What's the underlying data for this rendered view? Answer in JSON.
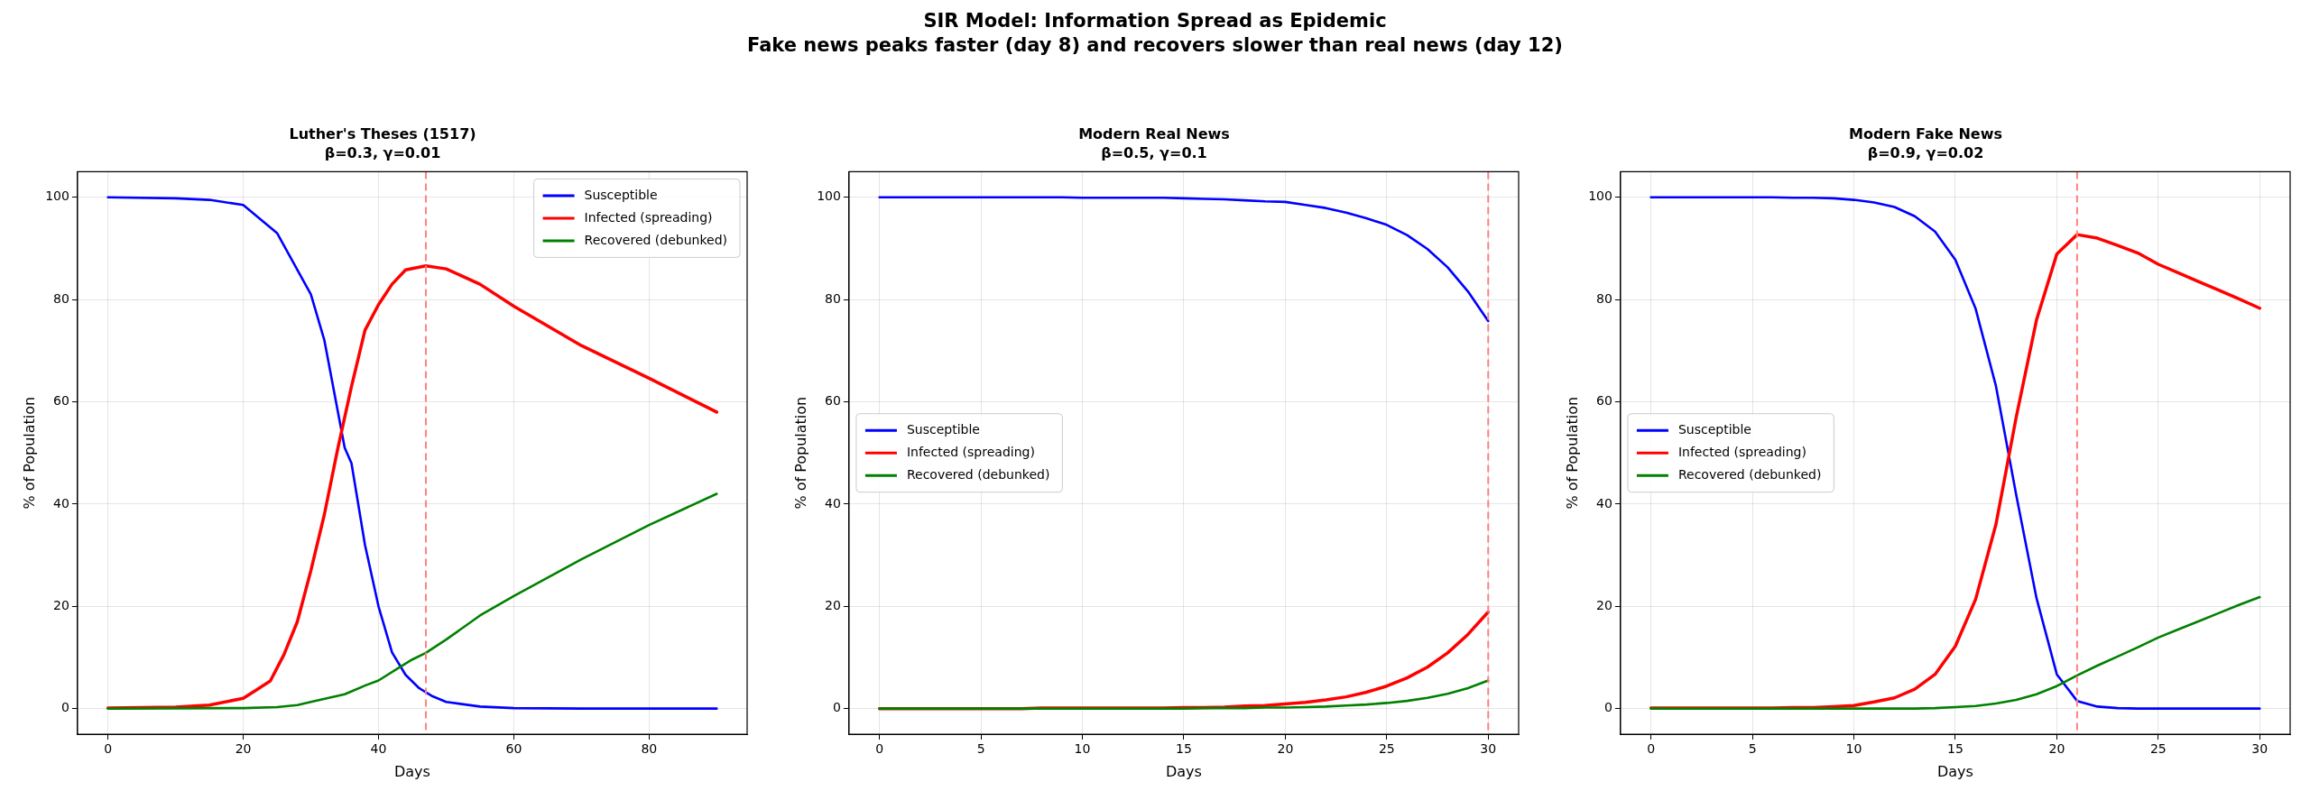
{
  "chart_data": [
    {
      "type": "line",
      "title": "Luther's Theses (1517)",
      "subtitle": "β=0.3, γ=0.01",
      "xlabel": "Days",
      "ylabel": "% of Population",
      "annotations": [
        "SIR Model: Information Spread as Epidemic",
        "Fake news peaks faster (day 8) and recovers slower than real news (day 12)"
      ],
      "xlim": [
        -4.5,
        94.5
      ],
      "xticks": [
        0,
        20,
        40,
        60,
        80
      ],
      "ylim": [
        -5,
        105
      ],
      "yticks": [
        0,
        20,
        40,
        60,
        80,
        100
      ],
      "grid": true,
      "legend": "top right",
      "marker": "none",
      "line_style": "solid",
      "ref_lines": [
        {
          "axis": "x",
          "value": 47,
          "color": "#ff8080",
          "line_style": "dashed"
        }
      ],
      "series": [
        {
          "name": "Susceptible",
          "color": "#0000ff",
          "x": [
            0,
            10,
            15,
            20,
            25,
            30,
            32,
            35,
            36,
            38,
            40,
            42,
            44,
            46,
            48,
            50,
            55,
            60,
            70,
            80,
            90
          ],
          "values": [
            100,
            99.8,
            99.5,
            98.5,
            93,
            81,
            72,
            51,
            48,
            32,
            20,
            11,
            6.6,
            4,
            2.4,
            1.3,
            0.4,
            0.1,
            0,
            0,
            0
          ]
        },
        {
          "name": "Infected (spreading)",
          "color": "#ff0000",
          "x": [
            0,
            10,
            15,
            20,
            22,
            24,
            26,
            28,
            30,
            32,
            34,
            36,
            38,
            40,
            42,
            44,
            47,
            50,
            55,
            60,
            70,
            80,
            90
          ],
          "values": [
            0.1,
            0.3,
            0.7,
            2,
            3.7,
            5.4,
            10.5,
            17,
            27,
            38,
            51,
            63,
            74,
            79,
            83,
            85.8,
            86.6,
            86,
            83,
            78.7,
            71,
            64.6,
            58
          ]
        },
        {
          "name": "Recovered (debunked)",
          "color": "#008000",
          "x": [
            0,
            20,
            25,
            28,
            30,
            35,
            38,
            40,
            43,
            45,
            47,
            50,
            55,
            60,
            70,
            80,
            90
          ],
          "values": [
            0,
            0.1,
            0.3,
            0.7,
            1.3,
            2.8,
            4.5,
            5.5,
            8,
            9.6,
            10.9,
            13.5,
            18.2,
            22,
            29.2,
            35.9,
            42
          ]
        }
      ]
    },
    {
      "type": "line",
      "title": "Modern Real News",
      "subtitle": "β=0.5, γ=0.1",
      "xlabel": "Days",
      "ylabel": "% of Population",
      "x": [
        0,
        1,
        2,
        3,
        4,
        5,
        6,
        7,
        8,
        9,
        10,
        11,
        12,
        13,
        14,
        15,
        16,
        17,
        18,
        19,
        20,
        21,
        22,
        23,
        24,
        25,
        26,
        27,
        28,
        29,
        30
      ],
      "xlim": [
        -1.5,
        31.5
      ],
      "xticks": [
        0,
        5,
        10,
        15,
        20,
        25,
        30
      ],
      "ylim": [
        -5,
        105
      ],
      "yticks": [
        0,
        20,
        40,
        60,
        80,
        100
      ],
      "grid": true,
      "legend": "center left",
      "marker": "none",
      "line_style": "solid",
      "ref_lines": [
        {
          "axis": "x",
          "value": 30,
          "color": "#ff8080",
          "line_style": "dashed"
        }
      ],
      "series": [
        {
          "name": "Susceptible",
          "color": "#0000ff",
          "values": [
            100,
            100,
            100,
            100,
            100,
            100,
            100,
            100,
            100,
            100,
            99.9,
            99.9,
            99.9,
            99.9,
            99.9,
            99.8,
            99.7,
            99.6,
            99.4,
            99.2,
            99.1,
            98.5,
            97.9,
            97,
            95.9,
            94.6,
            92.6,
            89.9,
            86.3,
            81.6,
            75.8
          ]
        },
        {
          "name": "Infected (spreading)",
          "color": "#ff0000",
          "values": [
            0,
            0,
            0,
            0,
            0,
            0,
            0,
            0,
            0.1,
            0.1,
            0.1,
            0.1,
            0.1,
            0.1,
            0.1,
            0.2,
            0.2,
            0.3,
            0.5,
            0.6,
            0.9,
            1.2,
            1.7,
            2.3,
            3.2,
            4.4,
            6,
            8.1,
            10.9,
            14.5,
            18.9
          ]
        },
        {
          "name": "Recovered (debunked)",
          "color": "#008000",
          "values": [
            0,
            0,
            0,
            0,
            0,
            0,
            0,
            0,
            0,
            0,
            0,
            0,
            0,
            0,
            0,
            0,
            0.1,
            0.1,
            0.1,
            0.2,
            0.2,
            0.3,
            0.4,
            0.6,
            0.8,
            1.1,
            1.5,
            2.1,
            2.9,
            4,
            5.5
          ]
        }
      ]
    },
    {
      "type": "line",
      "title": "Modern Fake News",
      "subtitle": "β=0.9, γ=0.02",
      "xlabel": "Days",
      "ylabel": "% of Population",
      "x": [
        0,
        1,
        2,
        3,
        4,
        5,
        6,
        7,
        8,
        9,
        10,
        11,
        12,
        13,
        14,
        15,
        16,
        17,
        18,
        19,
        20,
        21,
        22,
        23,
        24,
        25,
        26,
        27,
        28,
        29,
        30
      ],
      "xlim": [
        -1.5,
        31.5
      ],
      "xticks": [
        0,
        5,
        10,
        15,
        20,
        25,
        30
      ],
      "ylim": [
        -5,
        105
      ],
      "yticks": [
        0,
        20,
        40,
        60,
        80,
        100
      ],
      "grid": true,
      "legend": "center left",
      "marker": "none",
      "line_style": "solid",
      "ref_lines": [
        {
          "axis": "x",
          "value": 21,
          "color": "#ff8080",
          "line_style": "dashed"
        }
      ],
      "series": [
        {
          "name": "Susceptible",
          "color": "#0000ff",
          "values": [
            100,
            100,
            100,
            100,
            100,
            100,
            100,
            99.9,
            99.9,
            99.8,
            99.5,
            99,
            98.1,
            96.3,
            93.3,
            87.8,
            78.2,
            63.1,
            41.8,
            21.6,
            6.7,
            1.5,
            0.4,
            0.1,
            0,
            0,
            0,
            0,
            0,
            0,
            0
          ]
        },
        {
          "name": "Infected (spreading)",
          "color": "#ff0000",
          "values": [
            0.1,
            0.1,
            0.1,
            0.1,
            0.1,
            0.1,
            0.1,
            0.2,
            0.2,
            0.4,
            0.6,
            1.3,
            2.1,
            3.8,
            6.7,
            12.2,
            21.4,
            36,
            57,
            76,
            88.9,
            92.7,
            92,
            90.6,
            89.1,
            86.9,
            85.2,
            83.5,
            81.8,
            80.1,
            78.3
          ]
        },
        {
          "name": "Recovered (debunked)",
          "color": "#008000",
          "values": [
            0,
            0,
            0,
            0,
            0,
            0,
            0,
            0,
            0,
            0,
            0,
            0,
            0,
            0,
            0.1,
            0.3,
            0.5,
            1,
            1.7,
            2.8,
            4.4,
            6.5,
            8.4,
            10.2,
            12,
            13.9,
            15.5,
            17.1,
            18.7,
            20.3,
            21.8
          ]
        }
      ]
    }
  ]
}
